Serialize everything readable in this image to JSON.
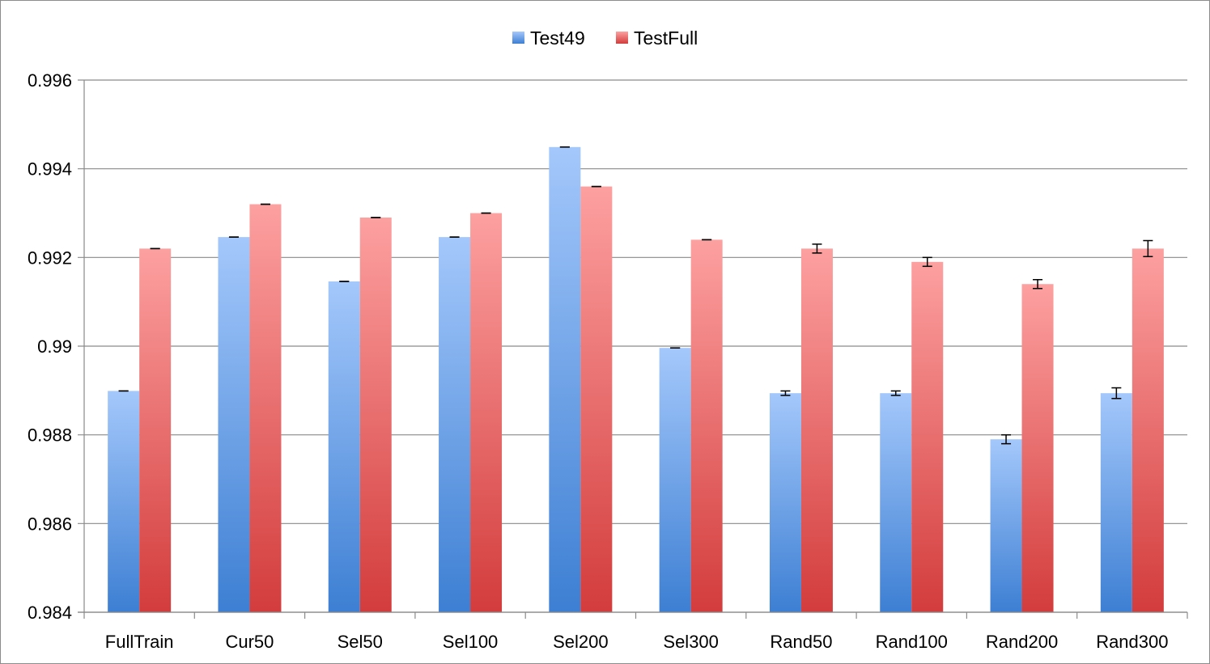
{
  "chart_data": {
    "type": "bar",
    "title": "",
    "xlabel": "",
    "ylabel": "",
    "ylim": [
      0.984,
      0.996
    ],
    "yticks": [
      0.984,
      0.986,
      0.988,
      0.99,
      0.992,
      0.994,
      0.996
    ],
    "ytick_labels": [
      "0.984",
      "0.986",
      "0.988",
      "0.99",
      "0.992",
      "0.994",
      "0.996"
    ],
    "grid": true,
    "legend_position": "top-center",
    "categories": [
      "FullTrain",
      "Cur50",
      "Sel50",
      "Sel100",
      "Sel200",
      "Sel300",
      "Rand50",
      "Rand100",
      "Rand200",
      "Rand300"
    ],
    "series": [
      {
        "name": "Test49",
        "color_top": "#a4c8fb",
        "color_bottom": "#3d7fd3",
        "values": [
          0.98899,
          0.99246,
          0.99146,
          0.99246,
          0.99449,
          0.98996,
          0.98894,
          0.98894,
          0.9879,
          0.98894
        ],
        "errors": [
          0.0,
          0.0,
          0.0,
          0.0,
          0.0,
          0.0,
          5e-05,
          5e-05,
          0.0001,
          0.00012
        ]
      },
      {
        "name": "TestFull",
        "color_top": "#fda0a0",
        "color_bottom": "#d33c3c",
        "values": [
          0.9922,
          0.9932,
          0.9929,
          0.993,
          0.9936,
          0.9924,
          0.9922,
          0.9919,
          0.9914,
          0.9922
        ],
        "errors": [
          0.0,
          0.0,
          0.0,
          0.0,
          0.0,
          0.0,
          0.0001,
          0.0001,
          0.0001,
          0.00018
        ]
      }
    ]
  }
}
